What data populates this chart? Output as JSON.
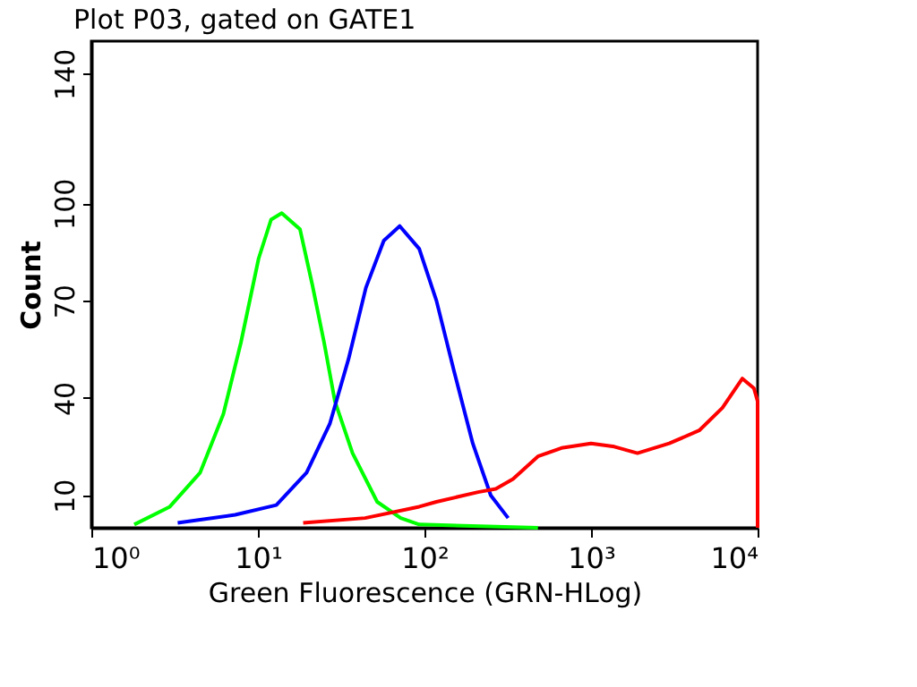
{
  "chart_data": {
    "type": "line",
    "title": "Plot P03, gated on GATE1",
    "xlabel": "Green Fluorescence (GRN-HLog)",
    "ylabel": "Count",
    "log": "x",
    "grid": false,
    "legend": false,
    "marker": "none",
    "line_style": "solid",
    "xlim": [
      1,
      10000
    ],
    "xticks": [
      {
        "value": 1,
        "label": "10⁰"
      },
      {
        "value": 10,
        "label": "10¹"
      },
      {
        "value": 100,
        "label": "10²"
      },
      {
        "value": 1000,
        "label": "10³"
      },
      {
        "value": 10000,
        "label": "10⁴"
      }
    ],
    "ylim": [
      0,
      150
    ],
    "yticks": [
      10,
      40,
      70,
      100,
      140
    ],
    "series": [
      {
        "color": "#00ff00",
        "x": [
          1.81,
          2.96,
          4.5,
          6.2,
          7.9,
          10.1,
          12,
          13.9,
          17.9,
          21.2,
          25,
          29,
          37,
          52,
          72,
          93,
          480
        ],
        "values": [
          1,
          6.5,
          17,
          35,
          57,
          83,
          95,
          97,
          92,
          75,
          57,
          39,
          23,
          8,
          3,
          1,
          0
        ]
      },
      {
        "color": "#0000ff",
        "x": [
          3.3,
          7.3,
          12.9,
          19.6,
          27,
          35,
          44.5,
          57,
          71,
          93,
          118,
          151,
          195,
          250,
          318
        ],
        "values": [
          1.5,
          4,
          7,
          17,
          32,
          52,
          74,
          88.5,
          93,
          86,
          70,
          48,
          26,
          10,
          3
        ]
      },
      {
        "color": "#ff0000",
        "x": [
          18.7,
          44,
          93,
          118,
          210,
          268,
          340,
          480,
          665,
          1000,
          1380,
          1900,
          2950,
          4460,
          6150,
          8100,
          9500,
          10000,
          10000
        ],
        "values": [
          1.5,
          3,
          6.5,
          8,
          11,
          12,
          15,
          22,
          24.6,
          26,
          25,
          23,
          26,
          30,
          37,
          46,
          43,
          39,
          0
        ]
      }
    ]
  }
}
